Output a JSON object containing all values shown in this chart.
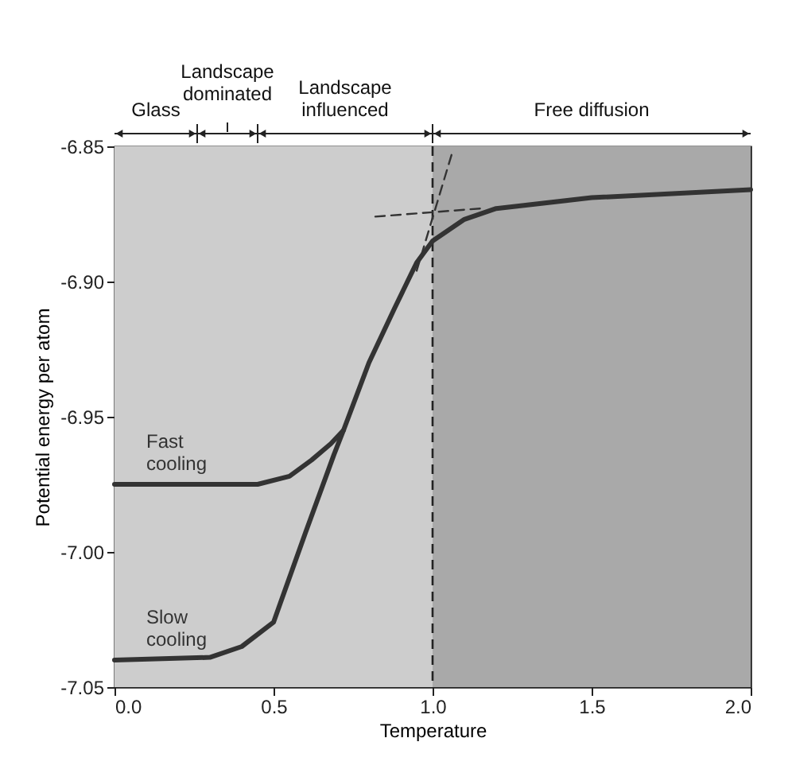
{
  "chart_data": {
    "type": "line",
    "xlabel": "Temperature",
    "ylabel": "Potential energy per atom",
    "xlim": [
      0,
      2
    ],
    "ylim": [
      -7.05,
      -6.85
    ],
    "xticks": [
      {
        "value": 0,
        "label": "0.0"
      },
      0.5,
      {
        "value": 1,
        "label": "1.0"
      },
      1.5,
      {
        "value": 2,
        "label": "2.0"
      }
    ],
    "yticks": [
      -7.05,
      {
        "value": -7,
        "label": "-7.00"
      },
      -6.95,
      {
        "value": -6.9,
        "label": "-6.90"
      },
      -6.85
    ],
    "grid": false,
    "marker": "none",
    "series": [
      {
        "name": "Fast cooling",
        "color": "#333333",
        "x": [
          0,
          0.45,
          0.55,
          0.62,
          0.68,
          0.72
        ],
        "values": [
          -6.975,
          -6.975,
          -6.972,
          -6.966,
          -6.96,
          -6.955
        ]
      },
      {
        "name": "Slow cooling",
        "color": "#333333",
        "x": [
          0,
          0.3,
          0.4,
          0.5,
          0.6,
          0.69,
          0.72,
          0.8,
          0.88,
          0.95,
          1.0,
          1.1,
          1.2,
          1.5,
          2.0
        ],
        "values": [
          -7.04,
          -7.039,
          -7.035,
          -7.026,
          -6.993,
          -6.964,
          -6.955,
          -6.93,
          -6.91,
          -6.893,
          -6.885,
          -6.877,
          -6.873,
          -6.869,
          -6.866
        ]
      },
      {
        "type": "line",
        "color": "#333333",
        "line_style": "dashed",
        "x": [
          0.82,
          1.15
        ],
        "values": [
          -6.876,
          -6.873
        ]
      },
      {
        "type": "line",
        "color": "#333333",
        "line_style": "dashed",
        "x": [
          0.95,
          1.06
        ],
        "values": [
          -6.896,
          -6.853
        ]
      }
    ],
    "bands": [
      {
        "axis": "x",
        "from": 0,
        "to": 0.26,
        "label": "Glass",
        "color": "#cdcdcd"
      },
      {
        "axis": "x",
        "from": 0.26,
        "to": 0.45,
        "label": "Landscape dominated",
        "color": "#cdcdcd"
      },
      {
        "axis": "x",
        "from": 0.45,
        "to": 1.0,
        "label": "Landscape influenced",
        "color": "#cdcdcd"
      },
      {
        "axis": "x",
        "from": 1.0,
        "to": 2.0,
        "label": "Free diffusion",
        "color": "#a9a9a9"
      }
    ],
    "ref_lines": [
      {
        "axis": "x",
        "value": 1.0,
        "line_style": "dashed",
        "color": "#222222"
      }
    ]
  }
}
